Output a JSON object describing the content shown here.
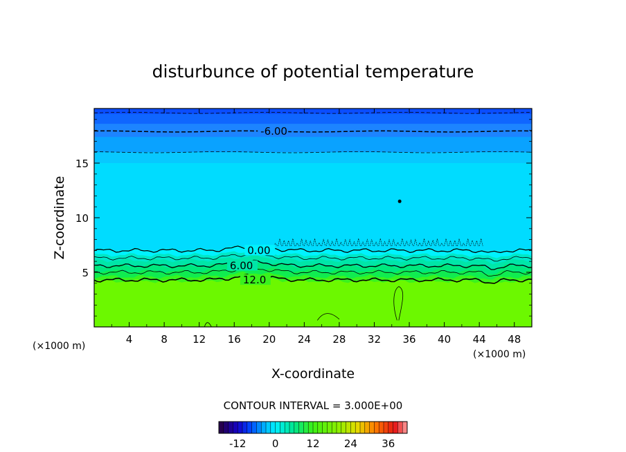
{
  "chart_data": {
    "type": "heatmap",
    "title": "disturbunce of potential temperature",
    "xlabel": "X-coordinate",
    "ylabel": "Z-coordinate",
    "x_unit": "(×1000 m)",
    "y_unit": "(×1000 m)",
    "xlim": [
      0,
      50
    ],
    "ylim": [
      0,
      20
    ],
    "x_ticks": [
      4,
      8,
      12,
      16,
      20,
      24,
      28,
      32,
      36,
      40,
      44,
      48
    ],
    "y_ticks": [
      5,
      10,
      15
    ],
    "contour_labels": [
      {
        "text": "-6.00",
        "x": 19,
        "z": 17.9
      },
      {
        "text": "0.00",
        "x": 17.5,
        "z": 7.0
      },
      {
        "text": "6.00",
        "x": 15.5,
        "z": 5.6
      },
      {
        "text": "12.0",
        "x": 17,
        "z": 4.3
      }
    ],
    "contour_interval": "CONTOUR INTERVAL = 3.000E+00",
    "colorbar": {
      "min": -18,
      "max": 42,
      "ticks": [
        "-12",
        "0",
        "12",
        "24",
        "36"
      ],
      "tick_values": [
        -12,
        0,
        12,
        24,
        36
      ]
    },
    "layers": [
      {
        "z_bottom": 19.5,
        "z_top": 20,
        "value": -9,
        "color": "#0a4dff"
      },
      {
        "z_bottom": 18.6,
        "z_top": 19.5,
        "value": -7.5,
        "color": "#0f66ff"
      },
      {
        "z_bottom": 17.4,
        "z_top": 18.6,
        "value": -6,
        "color": "#1d84ff"
      },
      {
        "z_bottom": 16.0,
        "z_top": 17.4,
        "value": -4.5,
        "color": "#0aa2ff"
      },
      {
        "z_bottom": 15.0,
        "z_top": 16.0,
        "value": -3,
        "color": "#08c8ff"
      },
      {
        "z_bottom": 7.1,
        "z_top": 15.0,
        "value": -1.5,
        "color": "#00dcff"
      },
      {
        "z_bottom": 6.6,
        "z_top": 7.1,
        "value": 0,
        "color": "#00f2ff"
      },
      {
        "z_bottom": 6.1,
        "z_top": 6.6,
        "value": 3,
        "color": "#00e8c8"
      },
      {
        "z_bottom": 5.6,
        "z_top": 6.1,
        "value": 6,
        "color": "#00e6a8"
      },
      {
        "z_bottom": 5.1,
        "z_top": 5.6,
        "value": 8,
        "color": "#00e87c"
      },
      {
        "z_bottom": 4.6,
        "z_top": 5.1,
        "value": 10,
        "color": "#10ec50"
      },
      {
        "z_bottom": 4.2,
        "z_top": 4.6,
        "value": 12,
        "color": "#3af21e"
      },
      {
        "z_bottom": 0,
        "z_top": 4.2,
        "value": 14,
        "color": "#6cf800"
      }
    ]
  }
}
